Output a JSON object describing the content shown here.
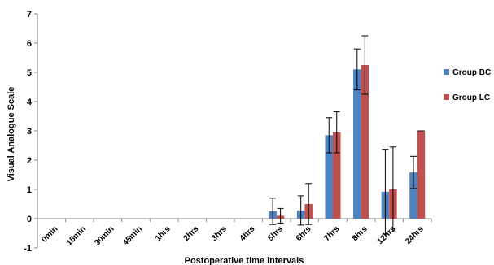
{
  "chart_data": {
    "type": "bar",
    "xlabel": "Postoperative time intervals",
    "ylabel": "Visual Analogue Scale",
    "ylim": [
      -1,
      7
    ],
    "yticks": [
      -1,
      0,
      1,
      2,
      3,
      4,
      5,
      6,
      7
    ],
    "categories": [
      "0min",
      "15min",
      "30min",
      "45min",
      "1hrs",
      "2hrs",
      "3hrs",
      "4hrs",
      "5hrs",
      "6hrs",
      "7hrs",
      "8hrs",
      "12hrs",
      "24hrs"
    ],
    "grid": false,
    "legend_position": "right",
    "series": [
      {
        "name": "Group BC",
        "color": "#4F81BD",
        "values": [
          0,
          0,
          0,
          0,
          0,
          0,
          0,
          0,
          0.25,
          0.28,
          2.85,
          5.1,
          0.92,
          1.58
        ],
        "errors": [
          0,
          0,
          0,
          0,
          0,
          0,
          0,
          0,
          0.45,
          0.5,
          0.6,
          0.7,
          1.45,
          0.55
        ]
      },
      {
        "name": "Group LC",
        "color": "#C0504D",
        "values": [
          0,
          0,
          0,
          0,
          0,
          0,
          0,
          0,
          0.1,
          0.5,
          2.95,
          5.25,
          1.0,
          3.0
        ],
        "errors": [
          0,
          0,
          0,
          0,
          0,
          0,
          0,
          0,
          0.25,
          0.7,
          0.7,
          1.0,
          1.45,
          0.0
        ]
      }
    ]
  }
}
